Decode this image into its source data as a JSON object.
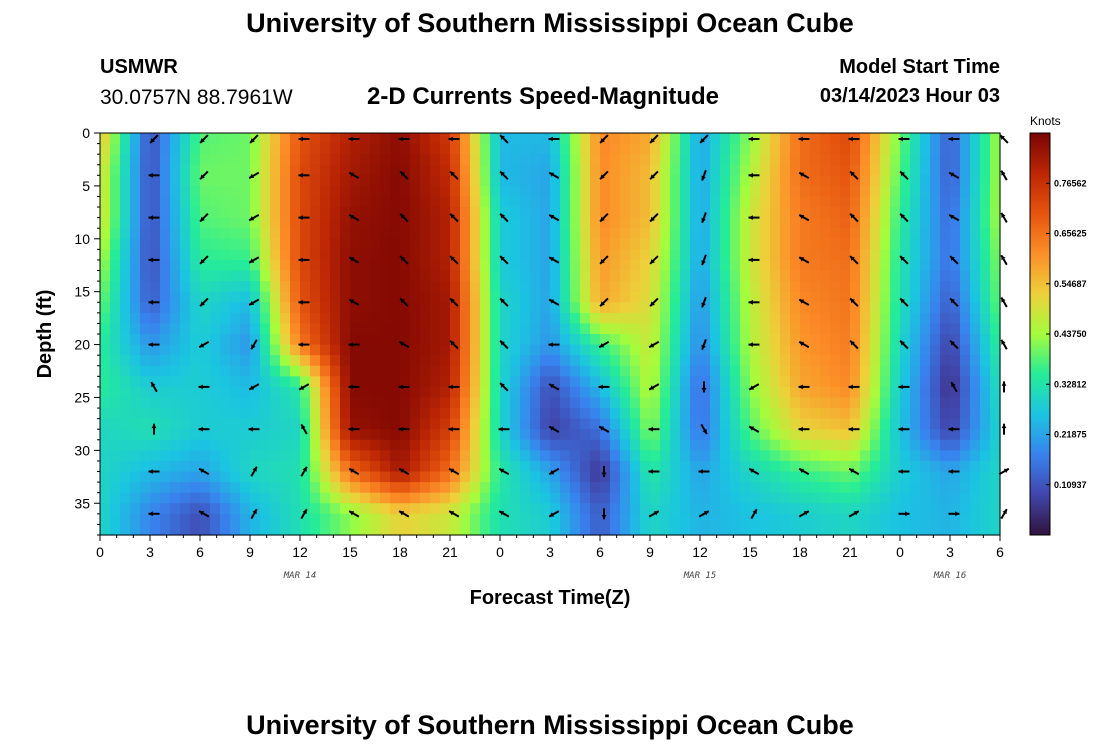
{
  "header": {
    "title": "University of Southern Mississippi Ocean Cube",
    "station_id": "USMWR",
    "coords": "30.0757N  88.7961W",
    "product": "2-D Currents Speed-Magnitude",
    "start_label": "Model Start Time",
    "start_value": "03/14/2023 Hour 03"
  },
  "footer": {
    "title": "University of Southern Mississippi Ocean Cube"
  },
  "chart_data": {
    "type": "heatmap",
    "title": "2-D Currents Speed-Magnitude",
    "xlabel": "Forecast Time(Z)",
    "ylabel": "Depth (ft)",
    "xlim": [
      0,
      54
    ],
    "ylim": [
      38,
      0
    ],
    "x_ticks": [
      0,
      3,
      6,
      9,
      12,
      15,
      18,
      21,
      24,
      27,
      30,
      33,
      36,
      39,
      42,
      45,
      48,
      51,
      54
    ],
    "x_tick_labels": [
      "0",
      "3",
      "6",
      "9",
      "12",
      "15",
      "18",
      "21",
      "0",
      "3",
      "6",
      "9",
      "12",
      "15",
      "18",
      "21",
      "0",
      "3",
      "6"
    ],
    "y_ticks": [
      0,
      5,
      10,
      15,
      20,
      25,
      30,
      35
    ],
    "y_tick_labels": [
      "0",
      "5",
      "10",
      "15",
      "20",
      "25",
      "30",
      "35"
    ],
    "date_labels": [
      {
        "hour": 12,
        "label": "MAR 14"
      },
      {
        "hour": 36,
        "label": "MAR 15"
      },
      {
        "hour": 51,
        "label": "MAR 16"
      }
    ],
    "colorbar": {
      "title": "Knots",
      "range": [
        0,
        0.875
      ],
      "ticks": [
        0.765625,
        0.65625,
        0.546875,
        0.4375,
        0.328125,
        0.21875,
        0.109375
      ],
      "labels": [
        "0.76562",
        "0.65625",
        "0.54687",
        "0.43750",
        "0.32812",
        "0.21875",
        "0.10937"
      ]
    },
    "column_hours": [
      0,
      3,
      6,
      9,
      12,
      15,
      18,
      21,
      24,
      27,
      30,
      33,
      36,
      39,
      42,
      45,
      48,
      51,
      54
    ],
    "row_depths": [
      0,
      4,
      8,
      12,
      16,
      20,
      24,
      28,
      32,
      36
    ],
    "speed_knots": [
      [
        0.55,
        0.1,
        0.38,
        0.4,
        0.7,
        0.8,
        0.85,
        0.75,
        0.25,
        0.25,
        0.62,
        0.58,
        0.22,
        0.42,
        0.66,
        0.72,
        0.4,
        0.12,
        0.45
      ],
      [
        0.5,
        0.1,
        0.4,
        0.4,
        0.72,
        0.82,
        0.86,
        0.78,
        0.25,
        0.22,
        0.62,
        0.55,
        0.22,
        0.45,
        0.66,
        0.7,
        0.38,
        0.12,
        0.45
      ],
      [
        0.5,
        0.1,
        0.38,
        0.4,
        0.72,
        0.84,
        0.86,
        0.8,
        0.28,
        0.22,
        0.62,
        0.55,
        0.22,
        0.48,
        0.64,
        0.68,
        0.35,
        0.14,
        0.45
      ],
      [
        0.45,
        0.1,
        0.35,
        0.36,
        0.72,
        0.85,
        0.86,
        0.8,
        0.28,
        0.22,
        0.6,
        0.52,
        0.22,
        0.48,
        0.64,
        0.66,
        0.33,
        0.15,
        0.42
      ],
      [
        0.4,
        0.12,
        0.3,
        0.25,
        0.7,
        0.85,
        0.86,
        0.82,
        0.3,
        0.22,
        0.58,
        0.5,
        0.2,
        0.46,
        0.62,
        0.65,
        0.32,
        0.12,
        0.4
      ],
      [
        0.35,
        0.2,
        0.28,
        0.2,
        0.64,
        0.86,
        0.86,
        0.82,
        0.3,
        0.2,
        0.36,
        0.48,
        0.18,
        0.45,
        0.6,
        0.64,
        0.3,
        0.08,
        0.36
      ],
      [
        0.35,
        0.28,
        0.28,
        0.25,
        0.34,
        0.86,
        0.86,
        0.8,
        0.3,
        0.1,
        0.25,
        0.46,
        0.14,
        0.42,
        0.58,
        0.62,
        0.28,
        0.05,
        0.32
      ],
      [
        0.3,
        0.32,
        0.28,
        0.28,
        0.3,
        0.84,
        0.86,
        0.74,
        0.3,
        0.08,
        0.15,
        0.42,
        0.15,
        0.38,
        0.52,
        0.55,
        0.26,
        0.08,
        0.3
      ],
      [
        0.3,
        0.25,
        0.22,
        0.3,
        0.32,
        0.66,
        0.82,
        0.66,
        0.34,
        0.22,
        0.06,
        0.34,
        0.22,
        0.3,
        0.36,
        0.4,
        0.28,
        0.22,
        0.3
      ],
      [
        0.3,
        0.18,
        0.1,
        0.24,
        0.32,
        0.42,
        0.52,
        0.48,
        0.32,
        0.28,
        0.12,
        0.3,
        0.24,
        0.26,
        0.28,
        0.3,
        0.26,
        0.24,
        0.3
      ]
    ],
    "arrow_rows": [
      0,
      4,
      8,
      12,
      16,
      20,
      24,
      28,
      32,
      36
    ],
    "arrow_hours": [
      3,
      6,
      9,
      12,
      15,
      18,
      21,
      24,
      27,
      30,
      33,
      36,
      39,
      42,
      45,
      48,
      51,
      54
    ],
    "arrow_dir_deg": [
      [
        225,
        225,
        225,
        270,
        270,
        270,
        270,
        315,
        270,
        225,
        225,
        225,
        270,
        270,
        270,
        270,
        270,
        315
      ],
      [
        270,
        225,
        240,
        270,
        300,
        315,
        315,
        315,
        300,
        225,
        225,
        200,
        270,
        300,
        315,
        315,
        300,
        330
      ],
      [
        270,
        225,
        240,
        270,
        300,
        315,
        315,
        315,
        300,
        225,
        225,
        200,
        270,
        300,
        315,
        315,
        300,
        330
      ],
      [
        270,
        225,
        240,
        270,
        300,
        315,
        315,
        315,
        300,
        225,
        225,
        200,
        270,
        300,
        315,
        315,
        315,
        330
      ],
      [
        270,
        225,
        240,
        270,
        300,
        315,
        315,
        315,
        300,
        225,
        225,
        200,
        270,
        300,
        315,
        315,
        315,
        330
      ],
      [
        270,
        240,
        210,
        270,
        270,
        300,
        315,
        315,
        270,
        240,
        240,
        200,
        270,
        300,
        315,
        315,
        315,
        330
      ],
      [
        330,
        270,
        240,
        240,
        270,
        270,
        270,
        315,
        300,
        270,
        240,
        180,
        240,
        270,
        270,
        270,
        330,
        0
      ],
      [
        0,
        270,
        270,
        330,
        270,
        270,
        270,
        270,
        300,
        300,
        270,
        150,
        300,
        270,
        270,
        270,
        270,
        0
      ],
      [
        270,
        300,
        30,
        30,
        300,
        300,
        300,
        300,
        240,
        180,
        270,
        270,
        300,
        300,
        300,
        270,
        270,
        60
      ],
      [
        270,
        300,
        30,
        30,
        300,
        300,
        300,
        300,
        240,
        180,
        60,
        60,
        30,
        60,
        60,
        90,
        90,
        30
      ]
    ]
  }
}
